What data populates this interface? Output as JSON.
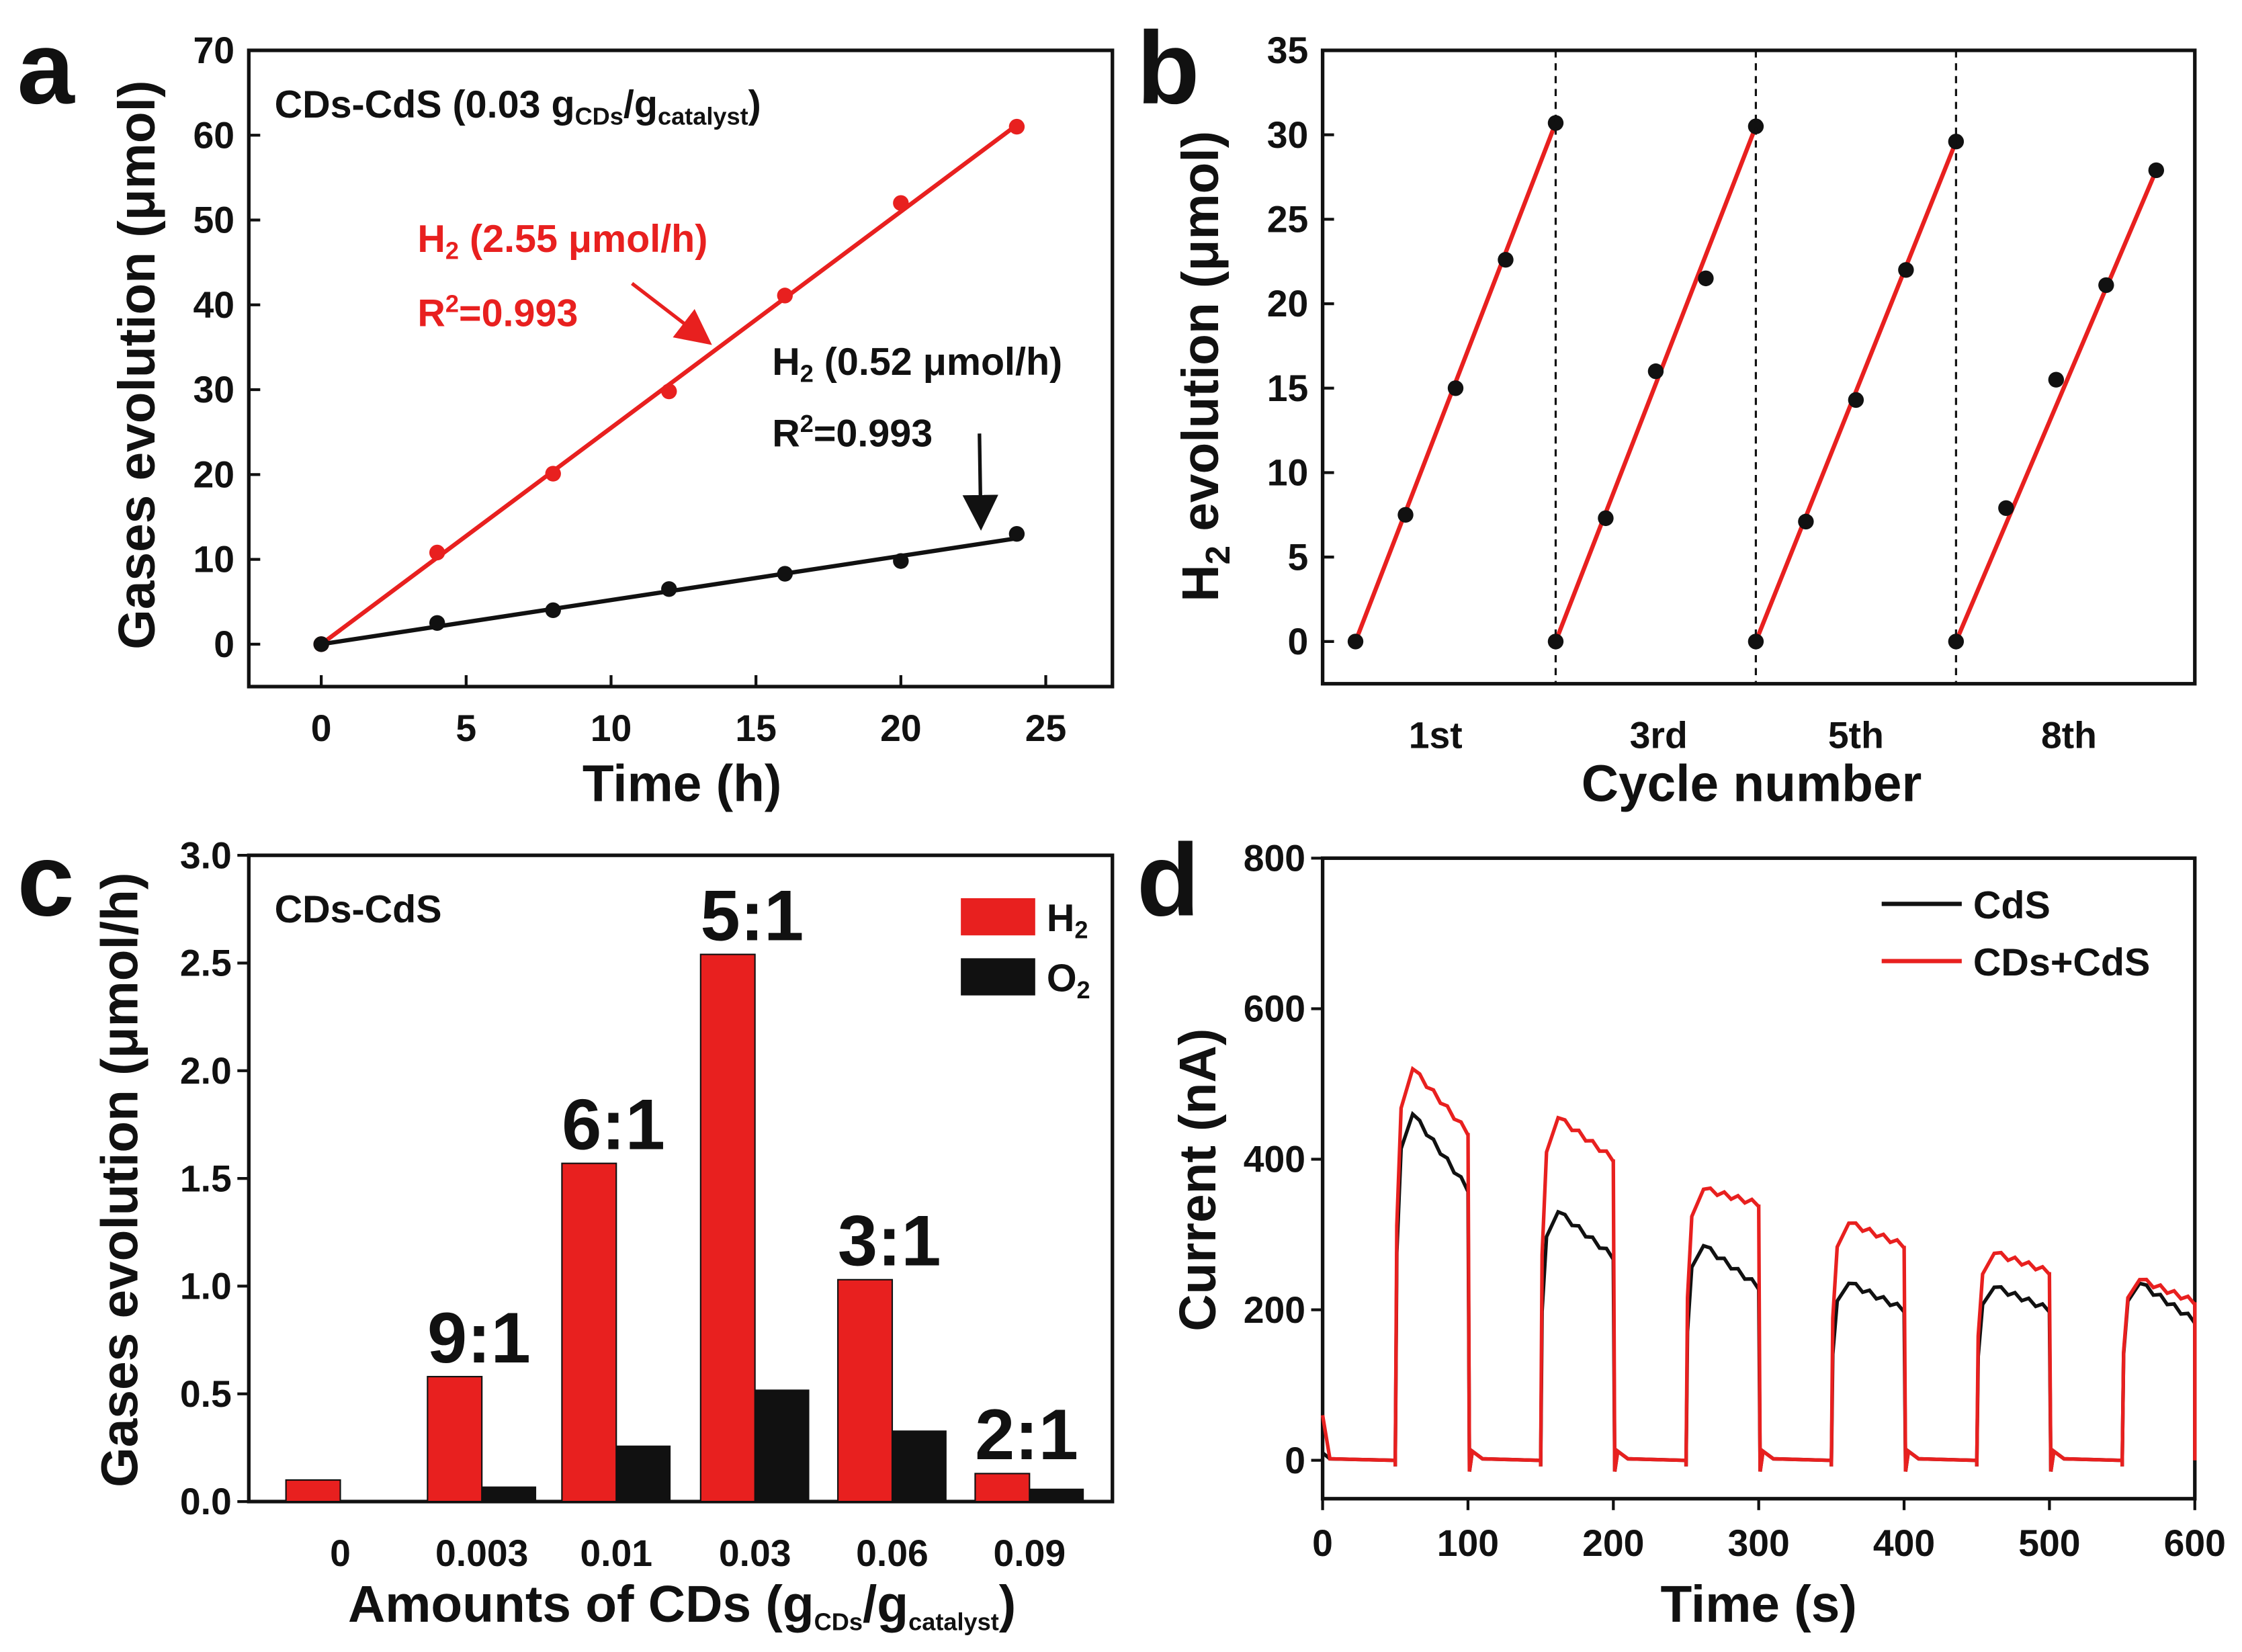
{
  "chart_data": [
    {
      "panel": "a",
      "type": "scatter",
      "xlabel": "Time (h)",
      "ylabel": "Gases evolution (μmol)",
      "xlim": [
        -2.5,
        27.3
      ],
      "ylim": [
        -5,
        70
      ],
      "xticks": [
        0,
        5,
        10,
        15,
        20,
        25
      ],
      "yticks": [
        0,
        10,
        20,
        30,
        40,
        50,
        60,
        70
      ],
      "title_parts": [
        "CDs-CdS (0.03 g",
        "CDs",
        "/g",
        "catalyst",
        ")"
      ],
      "series": [
        {
          "name": "H2 CDs-CdS",
          "color": "#e8201f",
          "x": [
            0,
            4,
            8,
            12,
            16,
            20,
            24
          ],
          "y": [
            0,
            10.8,
            20.1,
            29.8,
            41.1,
            52,
            61
          ],
          "fit_slope": 2.55,
          "label_parts": [
            "H",
            "2",
            " (2.55 μmol/h)"
          ],
          "r2_parts": [
            "R",
            "2",
            "=0.993"
          ]
        },
        {
          "name": "H2",
          "color": "#111111",
          "x": [
            0,
            4,
            8,
            12,
            16,
            20,
            24
          ],
          "y": [
            0,
            2.5,
            4,
            6.5,
            8.3,
            9.8,
            13
          ],
          "fit_slope": 0.52,
          "label_parts": [
            "H",
            "2",
            " (0.52 μmol/h)"
          ],
          "r2_parts": [
            "R",
            "2",
            "=0.993"
          ]
        }
      ]
    },
    {
      "panel": "b",
      "type": "line",
      "xlabel": "Cycle number",
      "ylabel_parts": [
        "H",
        "2",
        " evolution (μmol)"
      ],
      "ylim": [
        -2.5,
        35
      ],
      "yticks": [
        0,
        5,
        10,
        15,
        20,
        25,
        30,
        35
      ],
      "xtick_labels": [
        "1st",
        "3rd",
        "5th",
        "8th"
      ],
      "cycles": [
        [
          0,
          7.5,
          15,
          22.6,
          30.7
        ],
        [
          0,
          7.3,
          16,
          21.5,
          30.5
        ],
        [
          0,
          7.1,
          14.3,
          22,
          29.6
        ],
        [
          0,
          7.9,
          15.5,
          21.1,
          27.9
        ]
      ],
      "line_color": "#e8201f"
    },
    {
      "panel": "c",
      "type": "bar",
      "xlabel_parts": [
        "Amounts of CDs (g",
        "CDs",
        "/g",
        "catalyst",
        ")"
      ],
      "ylabel": "Gases evolution (μmol/h)",
      "ylim": [
        0,
        3.0
      ],
      "yticks": [
        "0.0",
        "0.5",
        "1.0",
        "1.5",
        "2.0",
        "2.5",
        "3.0"
      ],
      "categories": [
        "0",
        "0.003",
        "0.01",
        "0.03",
        "0.06",
        "0.09"
      ],
      "series": [
        {
          "name": "H2",
          "legend_parts": [
            "H",
            "2"
          ],
          "color": "#e8201f",
          "values": [
            0.1,
            0.58,
            1.57,
            2.54,
            1.03,
            0.13
          ]
        },
        {
          "name": "O2",
          "legend_parts": [
            "O",
            "2"
          ],
          "color": "#111111",
          "values": [
            0,
            0.07,
            0.26,
            0.52,
            0.33,
            0.06
          ]
        }
      ],
      "ratio_labels": [
        "",
        "9:1",
        "6:1",
        "5:1",
        "3:1",
        "2:1"
      ],
      "annotation": "CDs-CdS"
    },
    {
      "panel": "d",
      "type": "line",
      "xlabel": "Time (s)",
      "ylabel": "Current (nA)",
      "xlim": [
        0,
        600
      ],
      "ylim": [
        -51,
        800
      ],
      "xticks": [
        0,
        100,
        200,
        300,
        400,
        500,
        600
      ],
      "yticks": [
        0,
        200,
        400,
        600,
        800
      ],
      "light_on_times": [
        50,
        150,
        250,
        350,
        450,
        550
      ],
      "light_duration": 50,
      "series": [
        {
          "name": "CdS",
          "color": "#111111",
          "peaks": [
            460,
            330,
            285,
            235,
            230,
            235
          ],
          "ends": [
            360,
            270,
            230,
            200,
            200,
            185
          ]
        },
        {
          "name": "CDs+CdS",
          "color": "#e8201f",
          "peaks": [
            520,
            455,
            360,
            315,
            275,
            240
          ],
          "ends": [
            435,
            400,
            340,
            285,
            250,
            210
          ]
        }
      ]
    }
  ],
  "panel_labels": [
    "a",
    "b",
    "c",
    "d"
  ]
}
